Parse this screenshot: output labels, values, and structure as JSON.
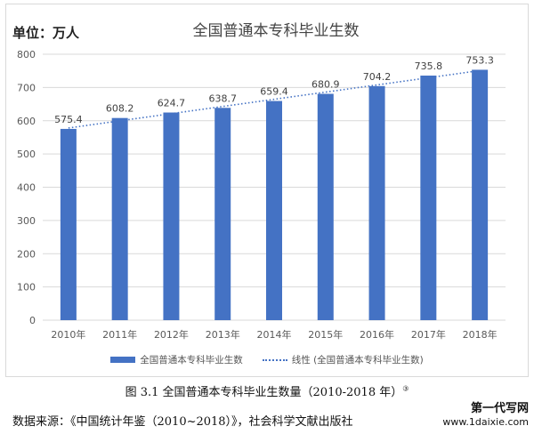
{
  "unit_label": "单位：万人",
  "caption": {
    "text": "图 3.1    全国普通本专科毕业生数量（2010-2018 年）",
    "note_mark": "③"
  },
  "source": "数据来源：《中国统计年鉴（2010~2018）》，社会科学文献出版社",
  "watermark": {
    "line1": "第一代写网",
    "line2": "www.1daixie.com"
  },
  "colors": {
    "bar": "#4472C4",
    "trend": "#4472C4",
    "grid": "#d9d9d9"
  },
  "chart_data": {
    "type": "bar",
    "title": "全国普通本专科毕业生数",
    "xlabel": "",
    "ylabel": "",
    "categories": [
      "2010年",
      "2011年",
      "2012年",
      "2013年",
      "2014年",
      "2015年",
      "2016年",
      "2017年",
      "2018年"
    ],
    "series": [
      {
        "name": "全国普通本专科毕业生数",
        "values": [
          575.4,
          608.2,
          624.7,
          638.7,
          659.4,
          680.9,
          704.2,
          735.8,
          753.3
        ]
      }
    ],
    "data_labels": [
      "575.4",
      "608.2",
      "624.7",
      "638.7",
      "659.4",
      "680.9",
      "704.2",
      "735.8",
      "753.3"
    ],
    "trendline": {
      "type": "linear",
      "name": "线性 (全国普通本专科毕业生数)"
    },
    "ylim": [
      0,
      800
    ],
    "yticks": [
      0,
      100,
      200,
      300,
      400,
      500,
      600,
      700,
      800
    ],
    "grid": true,
    "legend": "bottom"
  }
}
